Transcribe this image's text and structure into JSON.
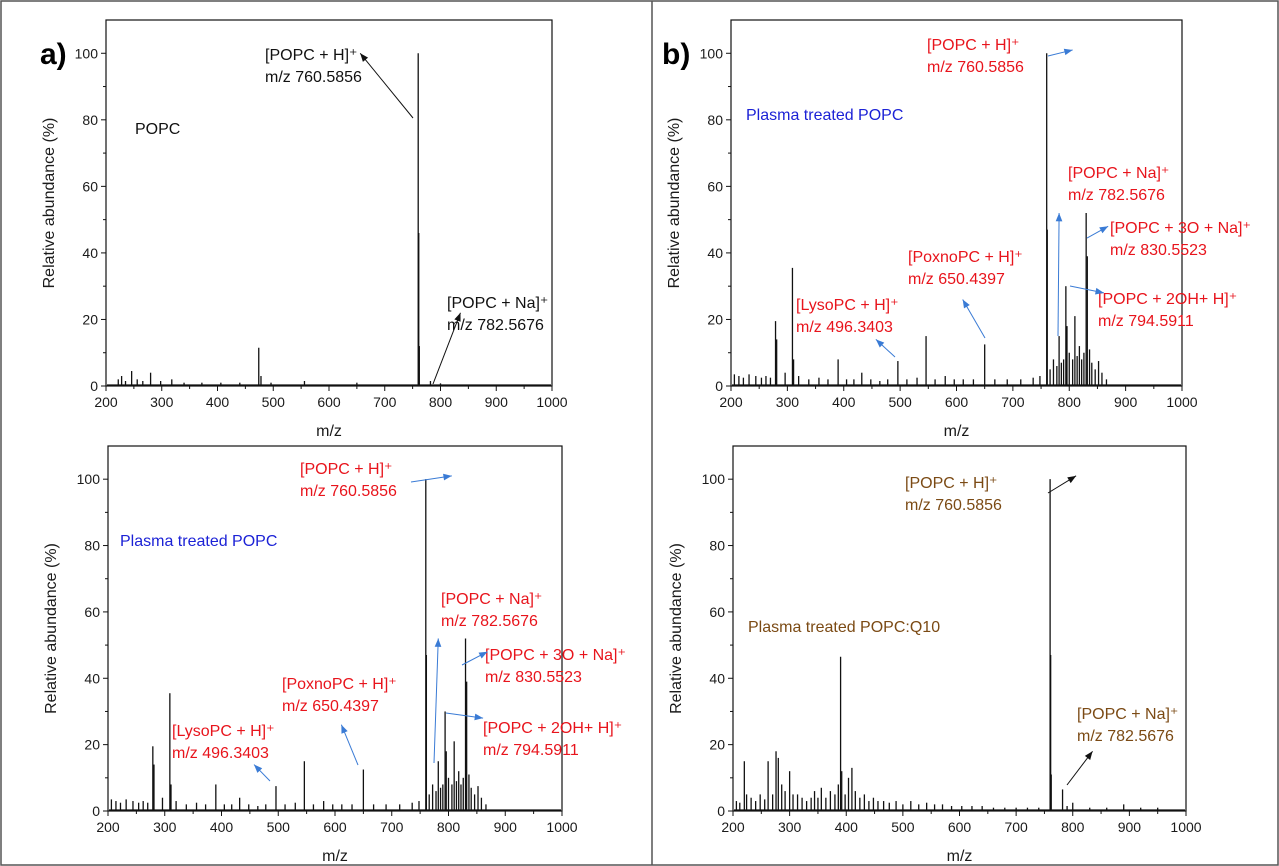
{
  "colors": {
    "black": "#111111",
    "red": "#e8141c",
    "blue": "#1c22d6",
    "brown": "#7b4a14",
    "arrow_blue": "#3a7bd5"
  },
  "panel_letters": [
    "a)",
    "b)"
  ],
  "chart_data": [
    {
      "type": "bar",
      "xlabel": "m/z",
      "ylabel": "Relative abundance (%)",
      "xlim": [
        200,
        1000
      ],
      "ylim": [
        0,
        110
      ],
      "xticks": [
        200,
        300,
        400,
        500,
        600,
        700,
        800,
        900,
        1000
      ],
      "yticks": [
        0,
        20,
        40,
        60,
        80,
        100
      ],
      "sample_label": "POPC",
      "sample_color": "black",
      "peaks": [
        {
          "x": 222,
          "y": 2
        },
        {
          "x": 228,
          "y": 3
        },
        {
          "x": 235,
          "y": 1.5
        },
        {
          "x": 246,
          "y": 4.5
        },
        {
          "x": 256,
          "y": 2
        },
        {
          "x": 266,
          "y": 1.5
        },
        {
          "x": 280,
          "y": 4
        },
        {
          "x": 298,
          "y": 1.5
        },
        {
          "x": 318,
          "y": 2
        },
        {
          "x": 340,
          "y": 1
        },
        {
          "x": 372,
          "y": 1
        },
        {
          "x": 406,
          "y": 1
        },
        {
          "x": 440,
          "y": 1
        },
        {
          "x": 474,
          "y": 11.5
        },
        {
          "x": 478,
          "y": 3
        },
        {
          "x": 496,
          "y": 1
        },
        {
          "x": 556,
          "y": 1.5
        },
        {
          "x": 650,
          "y": 1
        },
        {
          "x": 760,
          "y": 100
        },
        {
          "x": 761,
          "y": 46
        },
        {
          "x": 762,
          "y": 12
        },
        {
          "x": 782,
          "y": 1.5
        },
        {
          "x": 800,
          "y": 0.8
        }
      ],
      "annotations": [
        {
          "lines": [
            "[POPC + H]⁺",
            "m/z 760.5856"
          ],
          "color": "black",
          "arrow_color": "black",
          "peak_x": 760
        },
        {
          "lines": [
            "[POPC + Na]⁺",
            "m/z 782.5676"
          ],
          "color": "black",
          "arrow_color": "black",
          "peak_x": 782
        }
      ]
    },
    {
      "type": "bar",
      "xlabel": "m/z",
      "ylabel": "Relative abundance (%)",
      "xlim": [
        200,
        1000
      ],
      "ylim": [
        0,
        110
      ],
      "xticks": [
        200,
        300,
        400,
        500,
        600,
        700,
        800,
        900,
        1000
      ],
      "yticks": [
        0,
        20,
        40,
        60,
        80,
        100
      ],
      "sample_label": "Plasma treated POPC",
      "sample_color": "blue",
      "peaks": [
        {
          "x": 206,
          "y": 3.5
        },
        {
          "x": 214,
          "y": 3
        },
        {
          "x": 222,
          "y": 2.5
        },
        {
          "x": 232,
          "y": 3.5
        },
        {
          "x": 244,
          "y": 3
        },
        {
          "x": 254,
          "y": 2.5
        },
        {
          "x": 262,
          "y": 3
        },
        {
          "x": 270,
          "y": 2.5
        },
        {
          "x": 279,
          "y": 19.5
        },
        {
          "x": 281,
          "y": 14
        },
        {
          "x": 296,
          "y": 4
        },
        {
          "x": 309,
          "y": 35.5
        },
        {
          "x": 311,
          "y": 8
        },
        {
          "x": 320,
          "y": 3
        },
        {
          "x": 338,
          "y": 2
        },
        {
          "x": 356,
          "y": 2.5
        },
        {
          "x": 372,
          "y": 2
        },
        {
          "x": 390,
          "y": 8
        },
        {
          "x": 405,
          "y": 2
        },
        {
          "x": 418,
          "y": 2
        },
        {
          "x": 432,
          "y": 4
        },
        {
          "x": 448,
          "y": 2
        },
        {
          "x": 464,
          "y": 1.5
        },
        {
          "x": 478,
          "y": 2
        },
        {
          "x": 496,
          "y": 7.5
        },
        {
          "x": 512,
          "y": 2
        },
        {
          "x": 530,
          "y": 2.5
        },
        {
          "x": 546,
          "y": 15
        },
        {
          "x": 562,
          "y": 2
        },
        {
          "x": 580,
          "y": 3
        },
        {
          "x": 596,
          "y": 2
        },
        {
          "x": 612,
          "y": 2
        },
        {
          "x": 630,
          "y": 2
        },
        {
          "x": 650,
          "y": 12.5
        },
        {
          "x": 668,
          "y": 2
        },
        {
          "x": 690,
          "y": 2
        },
        {
          "x": 714,
          "y": 2
        },
        {
          "x": 736,
          "y": 2.5
        },
        {
          "x": 748,
          "y": 3
        },
        {
          "x": 760,
          "y": 100
        },
        {
          "x": 761,
          "y": 47
        },
        {
          "x": 766,
          "y": 5
        },
        {
          "x": 772,
          "y": 8
        },
        {
          "x": 778,
          "y": 6
        },
        {
          "x": 782,
          "y": 15
        },
        {
          "x": 786,
          "y": 7
        },
        {
          "x": 790,
          "y": 8
        },
        {
          "x": 794,
          "y": 30
        },
        {
          "x": 796,
          "y": 18
        },
        {
          "x": 800,
          "y": 10
        },
        {
          "x": 806,
          "y": 8
        },
        {
          "x": 810,
          "y": 21
        },
        {
          "x": 814,
          "y": 9
        },
        {
          "x": 818,
          "y": 12
        },
        {
          "x": 822,
          "y": 8
        },
        {
          "x": 826,
          "y": 10
        },
        {
          "x": 830,
          "y": 52
        },
        {
          "x": 832,
          "y": 39
        },
        {
          "x": 836,
          "y": 11
        },
        {
          "x": 840,
          "y": 7
        },
        {
          "x": 846,
          "y": 5
        },
        {
          "x": 852,
          "y": 7.5
        },
        {
          "x": 858,
          "y": 4
        },
        {
          "x": 866,
          "y": 2
        }
      ],
      "annotations": [
        {
          "lines": [
            "[POPC + H]⁺",
            "m/z 760.5856"
          ],
          "color": "red",
          "arrow_color": "arrow_blue",
          "peak_x": 760
        },
        {
          "lines": [
            "[POPC + Na]⁺",
            "m/z 782.5676"
          ],
          "color": "red",
          "arrow_color": "arrow_blue",
          "peak_x": 782
        },
        {
          "lines": [
            "[POPC + 3O + Na]⁺",
            "m/z 830.5523"
          ],
          "color": "red",
          "arrow_color": "arrow_blue",
          "peak_x": 830
        },
        {
          "lines": [
            "[POPC + 2OH+ H]⁺",
            "m/z 794.5911"
          ],
          "color": "red",
          "arrow_color": "arrow_blue",
          "peak_x": 794
        },
        {
          "lines": [
            "[PoxnoPC + H]⁺",
            "m/z 650.4397"
          ],
          "color": "red",
          "arrow_color": "arrow_blue",
          "peak_x": 650
        },
        {
          "lines": [
            "[LysoPC + H]⁺",
            "m/z 496.3403"
          ],
          "color": "red",
          "arrow_color": "arrow_blue",
          "peak_x": 496
        }
      ]
    },
    {
      "type": "bar",
      "xlabel": "m/z",
      "ylabel": "Relative abundance (%)",
      "xlim": [
        200,
        1000
      ],
      "ylim": [
        0,
        110
      ],
      "xticks": [
        200,
        300,
        400,
        500,
        600,
        700,
        800,
        900,
        1000
      ],
      "yticks": [
        0,
        20,
        40,
        60,
        80,
        100
      ],
      "sample_label": "Plasma treated POPC",
      "sample_color": "blue",
      "peaks": [
        {
          "x": 206,
          "y": 3.5
        },
        {
          "x": 214,
          "y": 3
        },
        {
          "x": 222,
          "y": 2.5
        },
        {
          "x": 232,
          "y": 3.5
        },
        {
          "x": 244,
          "y": 3
        },
        {
          "x": 254,
          "y": 2.5
        },
        {
          "x": 262,
          "y": 3
        },
        {
          "x": 270,
          "y": 2.5
        },
        {
          "x": 279,
          "y": 19.5
        },
        {
          "x": 281,
          "y": 14
        },
        {
          "x": 296,
          "y": 4
        },
        {
          "x": 309,
          "y": 35.5
        },
        {
          "x": 311,
          "y": 8
        },
        {
          "x": 320,
          "y": 3
        },
        {
          "x": 338,
          "y": 2
        },
        {
          "x": 356,
          "y": 2.5
        },
        {
          "x": 372,
          "y": 2
        },
        {
          "x": 390,
          "y": 8
        },
        {
          "x": 405,
          "y": 2
        },
        {
          "x": 418,
          "y": 2
        },
        {
          "x": 432,
          "y": 4
        },
        {
          "x": 448,
          "y": 2
        },
        {
          "x": 464,
          "y": 1.5
        },
        {
          "x": 478,
          "y": 2
        },
        {
          "x": 496,
          "y": 7.5
        },
        {
          "x": 512,
          "y": 2
        },
        {
          "x": 530,
          "y": 2.5
        },
        {
          "x": 546,
          "y": 15
        },
        {
          "x": 562,
          "y": 2
        },
        {
          "x": 580,
          "y": 3
        },
        {
          "x": 596,
          "y": 2
        },
        {
          "x": 612,
          "y": 2
        },
        {
          "x": 630,
          "y": 2
        },
        {
          "x": 650,
          "y": 12.5
        },
        {
          "x": 668,
          "y": 2
        },
        {
          "x": 690,
          "y": 2
        },
        {
          "x": 714,
          "y": 2
        },
        {
          "x": 736,
          "y": 2.5
        },
        {
          "x": 748,
          "y": 3
        },
        {
          "x": 760,
          "y": 100
        },
        {
          "x": 761,
          "y": 47
        },
        {
          "x": 766,
          "y": 5
        },
        {
          "x": 772,
          "y": 8
        },
        {
          "x": 778,
          "y": 6
        },
        {
          "x": 782,
          "y": 15
        },
        {
          "x": 786,
          "y": 7
        },
        {
          "x": 790,
          "y": 8
        },
        {
          "x": 794,
          "y": 30
        },
        {
          "x": 796,
          "y": 18
        },
        {
          "x": 800,
          "y": 10
        },
        {
          "x": 806,
          "y": 8
        },
        {
          "x": 810,
          "y": 21
        },
        {
          "x": 814,
          "y": 9
        },
        {
          "x": 818,
          "y": 12
        },
        {
          "x": 822,
          "y": 8
        },
        {
          "x": 826,
          "y": 10
        },
        {
          "x": 830,
          "y": 52
        },
        {
          "x": 832,
          "y": 39
        },
        {
          "x": 836,
          "y": 11
        },
        {
          "x": 840,
          "y": 7
        },
        {
          "x": 846,
          "y": 5
        },
        {
          "x": 852,
          "y": 7.5
        },
        {
          "x": 858,
          "y": 4
        },
        {
          "x": 866,
          "y": 2
        }
      ],
      "annotations": [
        {
          "lines": [
            "[POPC + H]⁺",
            "m/z 760.5856"
          ],
          "color": "red",
          "arrow_color": "arrow_blue",
          "peak_x": 760
        },
        {
          "lines": [
            "[POPC + Na]⁺",
            "m/z 782.5676"
          ],
          "color": "red",
          "arrow_color": "arrow_blue",
          "peak_x": 782
        },
        {
          "lines": [
            "[POPC + 3O + Na]⁺",
            "m/z 830.5523"
          ],
          "color": "red",
          "arrow_color": "arrow_blue",
          "peak_x": 830
        },
        {
          "lines": [
            "[POPC + 2OH+ H]⁺",
            "m/z 794.5911"
          ],
          "color": "red",
          "arrow_color": "arrow_blue",
          "peak_x": 794
        },
        {
          "lines": [
            "[PoxnoPC + H]⁺",
            "m/z 650.4397"
          ],
          "color": "red",
          "arrow_color": "arrow_blue",
          "peak_x": 650
        },
        {
          "lines": [
            "[LysoPC + H]⁺",
            "m/z 496.3403"
          ],
          "color": "red",
          "arrow_color": "arrow_blue",
          "peak_x": 496
        }
      ]
    },
    {
      "type": "bar",
      "xlabel": "m/z",
      "ylabel": "Relative abundance (%)",
      "xlim": [
        200,
        1000
      ],
      "ylim": [
        0,
        110
      ],
      "xticks": [
        200,
        300,
        400,
        500,
        600,
        700,
        800,
        900,
        1000
      ],
      "yticks": [
        0,
        20,
        40,
        60,
        80,
        100
      ],
      "sample_label": "Plasma treated POPC:Q10",
      "sample_color": "brown",
      "peaks": [
        {
          "x": 206,
          "y": 3
        },
        {
          "x": 212,
          "y": 2.5
        },
        {
          "x": 220,
          "y": 15
        },
        {
          "x": 224,
          "y": 5
        },
        {
          "x": 232,
          "y": 4
        },
        {
          "x": 240,
          "y": 3
        },
        {
          "x": 248,
          "y": 5
        },
        {
          "x": 256,
          "y": 3.5
        },
        {
          "x": 262,
          "y": 15
        },
        {
          "x": 270,
          "y": 5
        },
        {
          "x": 276,
          "y": 18
        },
        {
          "x": 280,
          "y": 16
        },
        {
          "x": 286,
          "y": 8
        },
        {
          "x": 292,
          "y": 6
        },
        {
          "x": 300,
          "y": 12
        },
        {
          "x": 306,
          "y": 5
        },
        {
          "x": 314,
          "y": 5
        },
        {
          "x": 322,
          "y": 4
        },
        {
          "x": 330,
          "y": 3
        },
        {
          "x": 338,
          "y": 4
        },
        {
          "x": 344,
          "y": 6
        },
        {
          "x": 350,
          "y": 4
        },
        {
          "x": 356,
          "y": 7
        },
        {
          "x": 364,
          "y": 4
        },
        {
          "x": 372,
          "y": 6
        },
        {
          "x": 380,
          "y": 5
        },
        {
          "x": 386,
          "y": 8
        },
        {
          "x": 390,
          "y": 46.5
        },
        {
          "x": 392,
          "y": 12
        },
        {
          "x": 398,
          "y": 5
        },
        {
          "x": 404,
          "y": 10
        },
        {
          "x": 410,
          "y": 13
        },
        {
          "x": 416,
          "y": 6
        },
        {
          "x": 424,
          "y": 4
        },
        {
          "x": 432,
          "y": 5
        },
        {
          "x": 440,
          "y": 3
        },
        {
          "x": 448,
          "y": 4
        },
        {
          "x": 456,
          "y": 3
        },
        {
          "x": 466,
          "y": 3
        },
        {
          "x": 476,
          "y": 2.5
        },
        {
          "x": 488,
          "y": 3
        },
        {
          "x": 500,
          "y": 2
        },
        {
          "x": 514,
          "y": 3
        },
        {
          "x": 528,
          "y": 2
        },
        {
          "x": 542,
          "y": 2.5
        },
        {
          "x": 556,
          "y": 2
        },
        {
          "x": 570,
          "y": 2
        },
        {
          "x": 586,
          "y": 1.5
        },
        {
          "x": 604,
          "y": 1.5
        },
        {
          "x": 622,
          "y": 1.5
        },
        {
          "x": 640,
          "y": 1.5
        },
        {
          "x": 660,
          "y": 1
        },
        {
          "x": 680,
          "y": 1
        },
        {
          "x": 700,
          "y": 1
        },
        {
          "x": 720,
          "y": 1
        },
        {
          "x": 740,
          "y": 1
        },
        {
          "x": 760,
          "y": 100
        },
        {
          "x": 761,
          "y": 47
        },
        {
          "x": 762,
          "y": 11
        },
        {
          "x": 782,
          "y": 6.5
        },
        {
          "x": 790,
          "y": 1.5
        },
        {
          "x": 800,
          "y": 2.5
        },
        {
          "x": 830,
          "y": 1
        },
        {
          "x": 860,
          "y": 1
        },
        {
          "x": 890,
          "y": 2
        },
        {
          "x": 920,
          "y": 1
        },
        {
          "x": 950,
          "y": 1
        }
      ],
      "annotations": [
        {
          "lines": [
            "[POPC + H]⁺",
            "m/z 760.5856"
          ],
          "color": "brown",
          "arrow_color": "black",
          "peak_x": 760
        },
        {
          "lines": [
            "[POPC + Na]⁺",
            "m/z 782.5676"
          ],
          "color": "brown",
          "arrow_color": "black",
          "peak_x": 782
        }
      ]
    }
  ]
}
